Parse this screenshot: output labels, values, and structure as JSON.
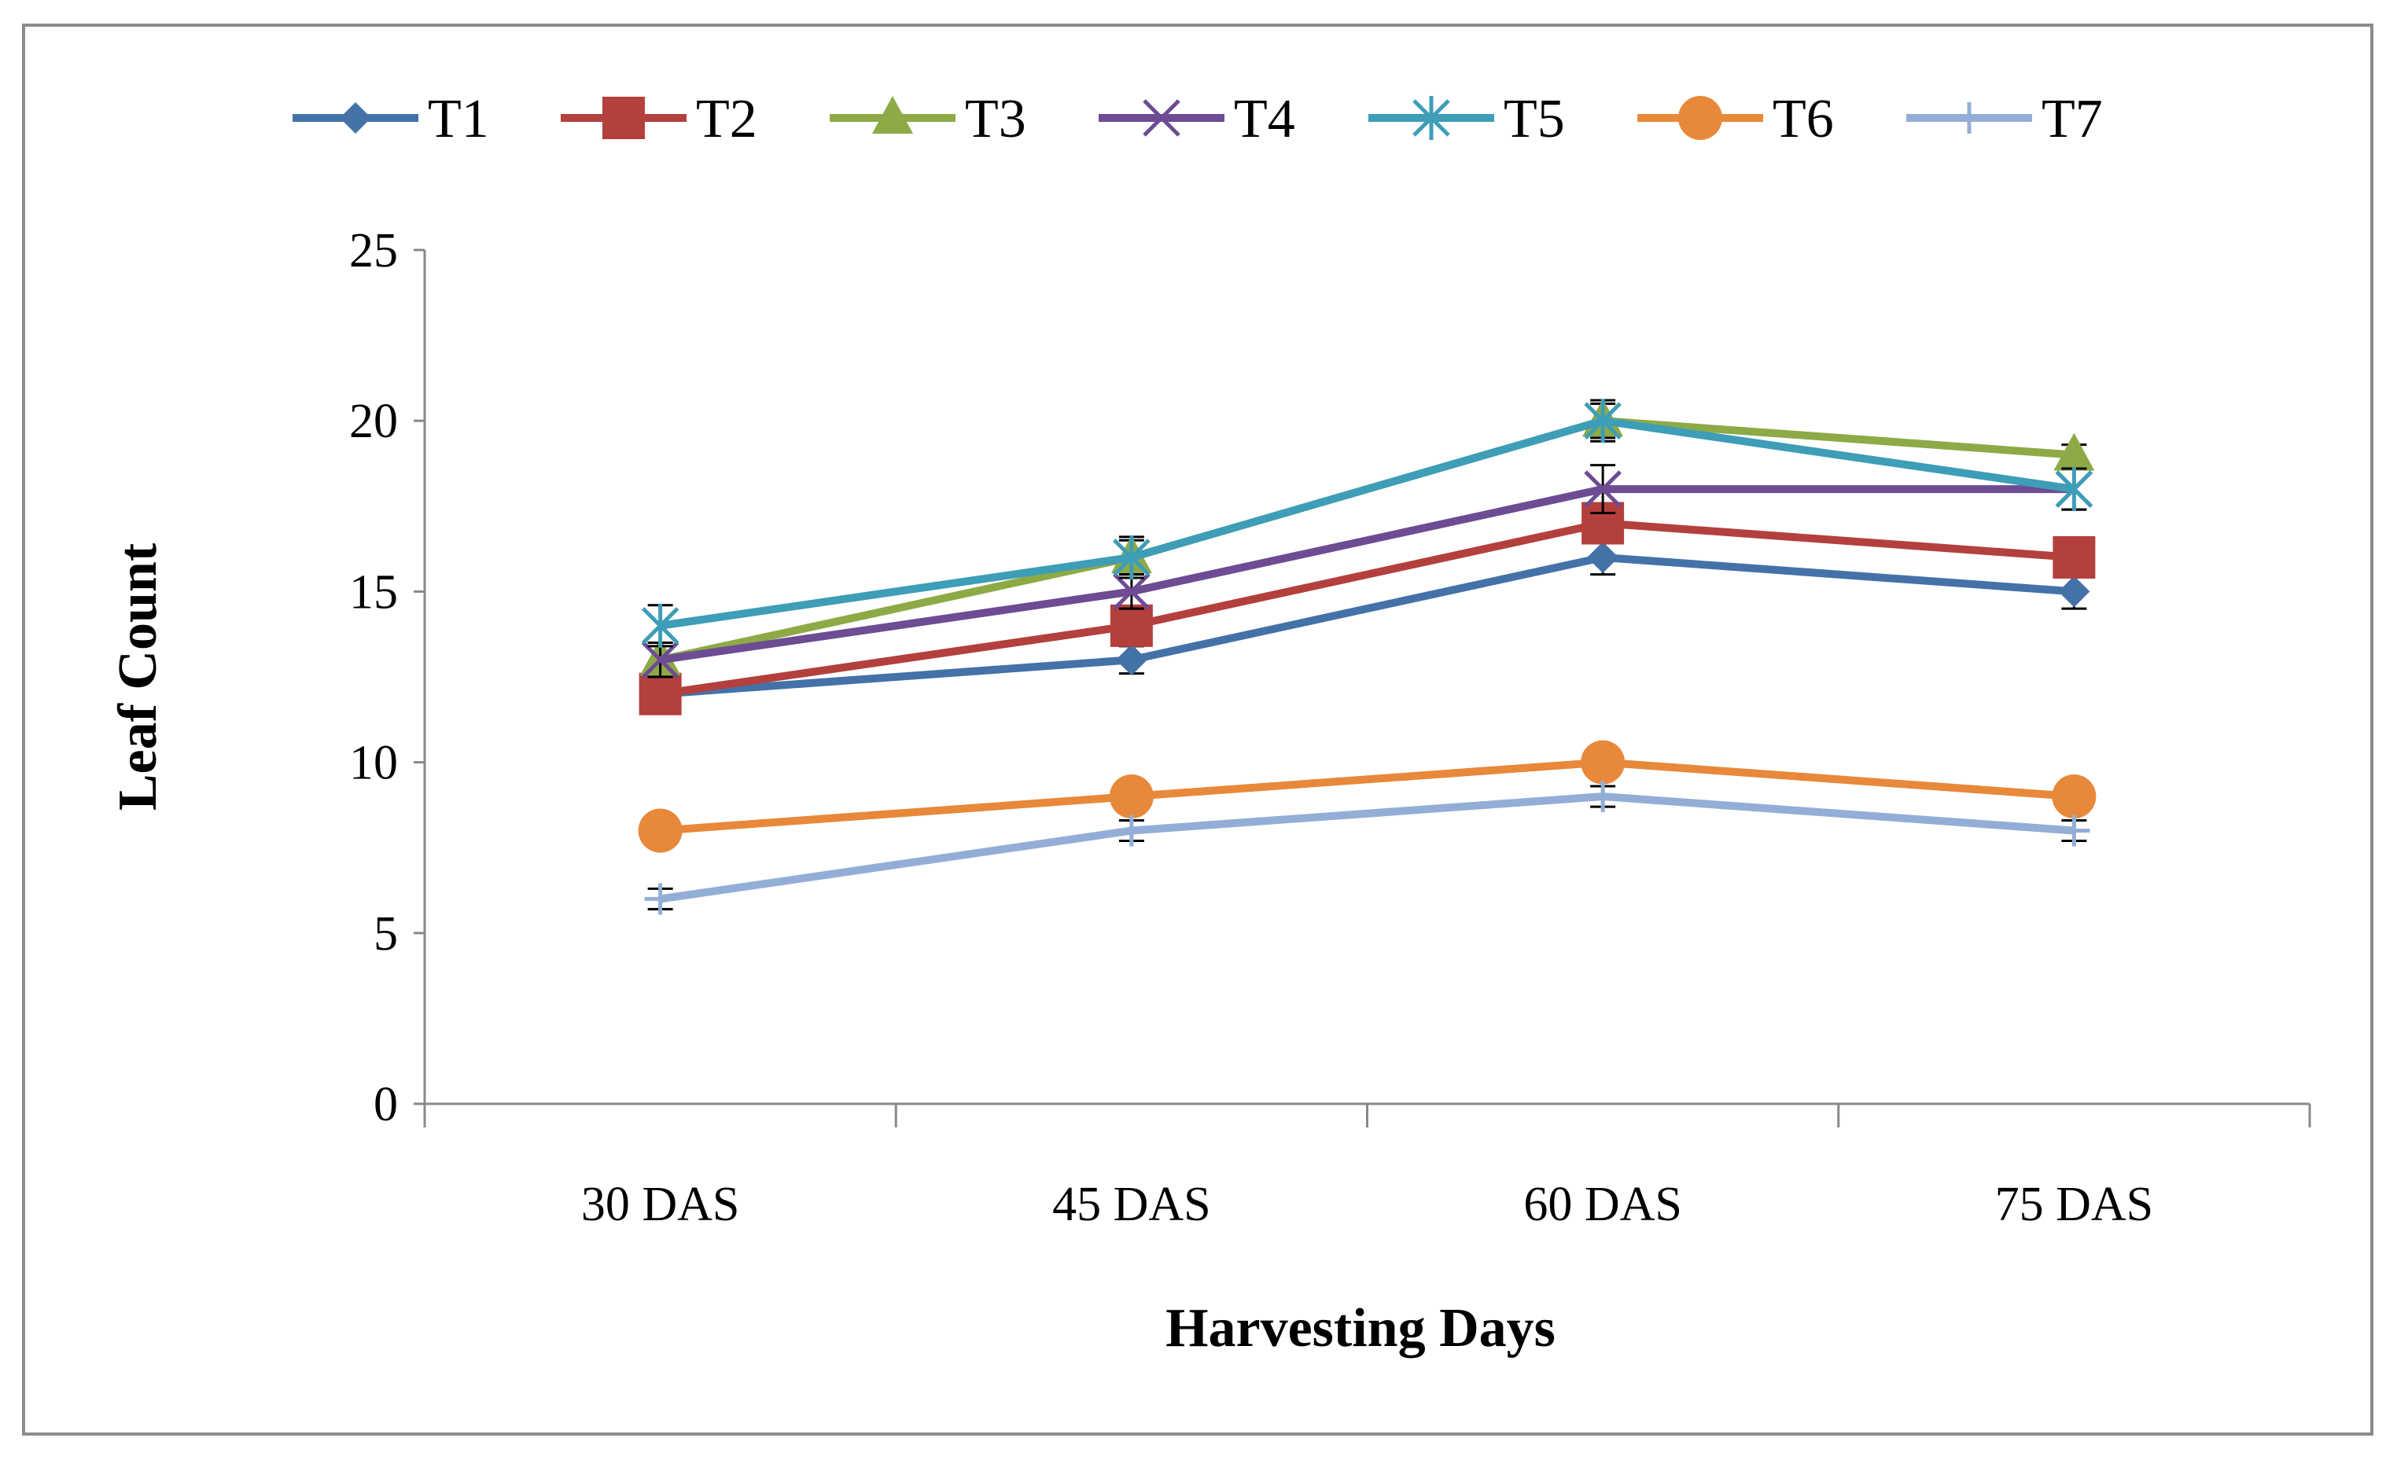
{
  "chart_data": {
    "type": "line",
    "title": "",
    "xlabel": "Harvesting Days",
    "ylabel": "Leaf Count",
    "categories": [
      "30 DAS",
      "45 DAS",
      "60 DAS",
      "75 DAS"
    ],
    "ylim": [
      0,
      25
    ],
    "yticks": [
      0,
      5,
      10,
      15,
      20,
      25
    ],
    "legend_position": "top",
    "grid": false,
    "error_bars": true,
    "series": [
      {
        "name": "T1",
        "values": [
          12,
          13,
          16,
          15
        ],
        "errors": [
          0.4,
          0.4,
          0.5,
          0.5
        ],
        "color": "#4472a8",
        "marker": "diamond"
      },
      {
        "name": "T2",
        "values": [
          12,
          14,
          17,
          16
        ],
        "errors": [
          0.4,
          0.5,
          0.5,
          0.5
        ],
        "color": "#b3403d",
        "marker": "square"
      },
      {
        "name": "T3",
        "values": [
          13,
          16,
          20,
          19
        ],
        "errors": [
          0.5,
          0.5,
          0.5,
          0.3
        ],
        "color": "#8daa46",
        "marker": "triangle"
      },
      {
        "name": "T4",
        "values": [
          13,
          15,
          18,
          18
        ],
        "errors": [
          0.5,
          0.5,
          0.7,
          0.6
        ],
        "color": "#6d4c93",
        "marker": "x"
      },
      {
        "name": "T5",
        "values": [
          14,
          16,
          20,
          18
        ],
        "errors": [
          0.6,
          0.6,
          0.6,
          0.6
        ],
        "color": "#3e9db7",
        "marker": "star"
      },
      {
        "name": "T6",
        "values": [
          8,
          9,
          10,
          9
        ],
        "errors": [
          0.2,
          0.2,
          0.2,
          0.2
        ],
        "color": "#e8883a",
        "marker": "circle"
      },
      {
        "name": "T7",
        "values": [
          6,
          8,
          9,
          8
        ],
        "errors": [
          0.3,
          0.3,
          0.3,
          0.3
        ],
        "color": "#93aed6",
        "marker": "plus"
      }
    ]
  }
}
